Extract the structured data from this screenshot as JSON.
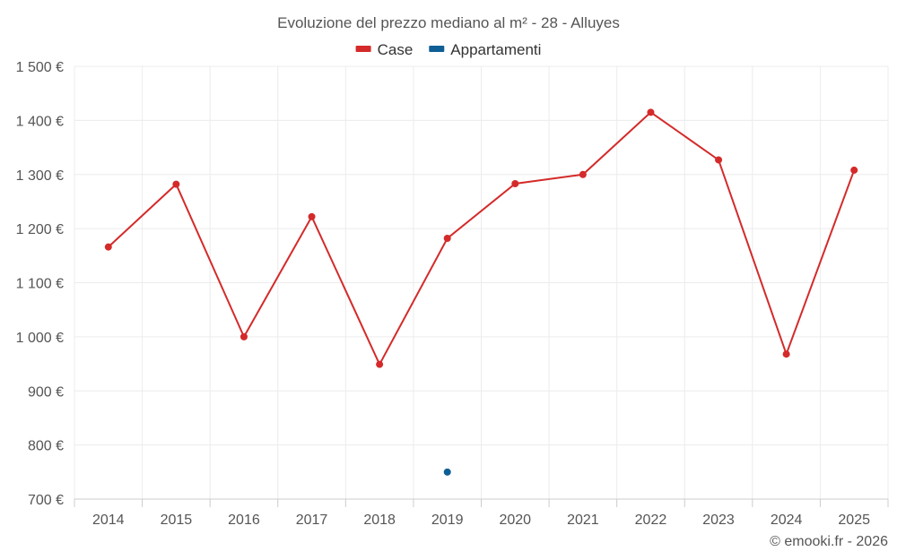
{
  "chart_data": {
    "type": "line",
    "title": "Evoluzione del prezzo mediano al m² - 28 - Alluyes",
    "categories": [
      "2014",
      "2015",
      "2016",
      "2017",
      "2018",
      "2019",
      "2020",
      "2021",
      "2022",
      "2023",
      "2024",
      "2025"
    ],
    "y_ticks": [
      "700 €",
      "800 €",
      "900 €",
      "1 000 €",
      "1 100 €",
      "1 200 €",
      "1 300 €",
      "1 400 €",
      "1 500 €"
    ],
    "ylim": [
      700,
      1500
    ],
    "grid": true,
    "legend_position": "top-center",
    "series": [
      {
        "name": "Case",
        "color": "#d42a2a",
        "values": [
          1166,
          1282,
          1000,
          1222,
          949,
          1182,
          1283,
          1300,
          1415,
          1327,
          968,
          1308
        ]
      },
      {
        "name": "Appartamenti",
        "color": "#0f5e96",
        "values": [
          null,
          null,
          null,
          null,
          null,
          750,
          null,
          null,
          null,
          null,
          null,
          null
        ]
      }
    ]
  },
  "credit": "© emooki.fr - 2026"
}
